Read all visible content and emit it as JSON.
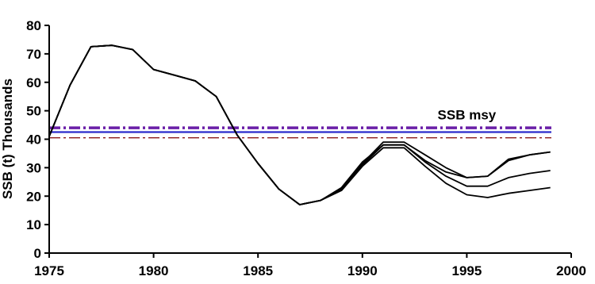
{
  "chart_data": {
    "type": "line",
    "title": "",
    "xlabel": "",
    "ylabel": "SSB (t) Thousands",
    "xlim": [
      1975,
      2000
    ],
    "ylim": [
      0,
      80
    ],
    "x_ticks": [
      "1975",
      "1980",
      "1985",
      "1990",
      "1995",
      "2000"
    ],
    "y_ticks": [
      "0",
      "10",
      "20",
      "30",
      "40",
      "50",
      "60",
      "70",
      "80"
    ],
    "grid": false,
    "legend": "none",
    "annotations": [
      {
        "text": "SSB msy",
        "x": 1995,
        "y": 47
      }
    ],
    "reference_lines": [
      {
        "y": 44,
        "color": "#6a1fa8",
        "style": "dash-dot",
        "weight": "heavy"
      },
      {
        "y": 42.5,
        "color": "#2b2bcc",
        "style": "solid",
        "weight": "medium"
      },
      {
        "y": 40.5,
        "color": "#8b1a1a",
        "style": "dash-dot",
        "weight": "light"
      }
    ],
    "series": [
      {
        "x": [
          1975,
          1976,
          1977,
          1978,
          1979,
          1980,
          1981,
          1982,
          1983,
          1984,
          1985,
          1986,
          1987,
          1988,
          1989,
          1990,
          1991,
          1992,
          1993,
          1994,
          1995,
          1996,
          1997,
          1998,
          1999
        ],
        "values": [
          41,
          59,
          72.5,
          73,
          71.5,
          64.5,
          62.5,
          60.5,
          55,
          41.5,
          31.5,
          22.5,
          17,
          18.5,
          23,
          32,
          38,
          38,
          32.5,
          28.5,
          26.5,
          27,
          32.5,
          34.5,
          35.5
        ]
      },
      {
        "x": [
          1975,
          1976,
          1977,
          1978,
          1979,
          1980,
          1981,
          1982,
          1983,
          1984,
          1985,
          1986,
          1987,
          1988,
          1989,
          1990,
          1991,
          1992,
          1993,
          1994,
          1995,
          1996,
          1997,
          1998,
          1999
        ],
        "values": [
          41,
          59,
          72.5,
          73,
          71.5,
          64.5,
          62.5,
          60.5,
          55,
          41.5,
          31.5,
          22.5,
          17,
          18.5,
          22.5,
          31.5,
          39,
          39,
          34.5,
          30,
          26.5,
          27,
          33,
          34.5,
          35.5
        ]
      },
      {
        "x": [
          1975,
          1976,
          1977,
          1978,
          1979,
          1980,
          1981,
          1982,
          1983,
          1984,
          1985,
          1986,
          1987,
          1988,
          1989,
          1990,
          1991,
          1992,
          1993,
          1994,
          1995,
          1996,
          1997,
          1998,
          1999
        ],
        "values": [
          41,
          59,
          72.5,
          73,
          71.5,
          64.5,
          62.5,
          60.5,
          55,
          41.5,
          31.5,
          22.5,
          17,
          18.5,
          22.5,
          31,
          38,
          38,
          32,
          27,
          23.5,
          23.5,
          26.5,
          28,
          29
        ]
      },
      {
        "x": [
          1975,
          1976,
          1977,
          1978,
          1979,
          1980,
          1981,
          1982,
          1983,
          1984,
          1985,
          1986,
          1987,
          1988,
          1989,
          1990,
          1991,
          1992,
          1993,
          1994,
          1995,
          1996,
          1997,
          1998,
          1999
        ],
        "values": [
          41,
          59,
          72.5,
          73,
          71.5,
          64.5,
          62.5,
          60.5,
          55,
          41.5,
          31.5,
          22.5,
          17,
          18.5,
          22,
          30.5,
          37,
          37,
          30.5,
          24.5,
          20.5,
          19.5,
          21,
          22,
          23
        ]
      }
    ]
  }
}
